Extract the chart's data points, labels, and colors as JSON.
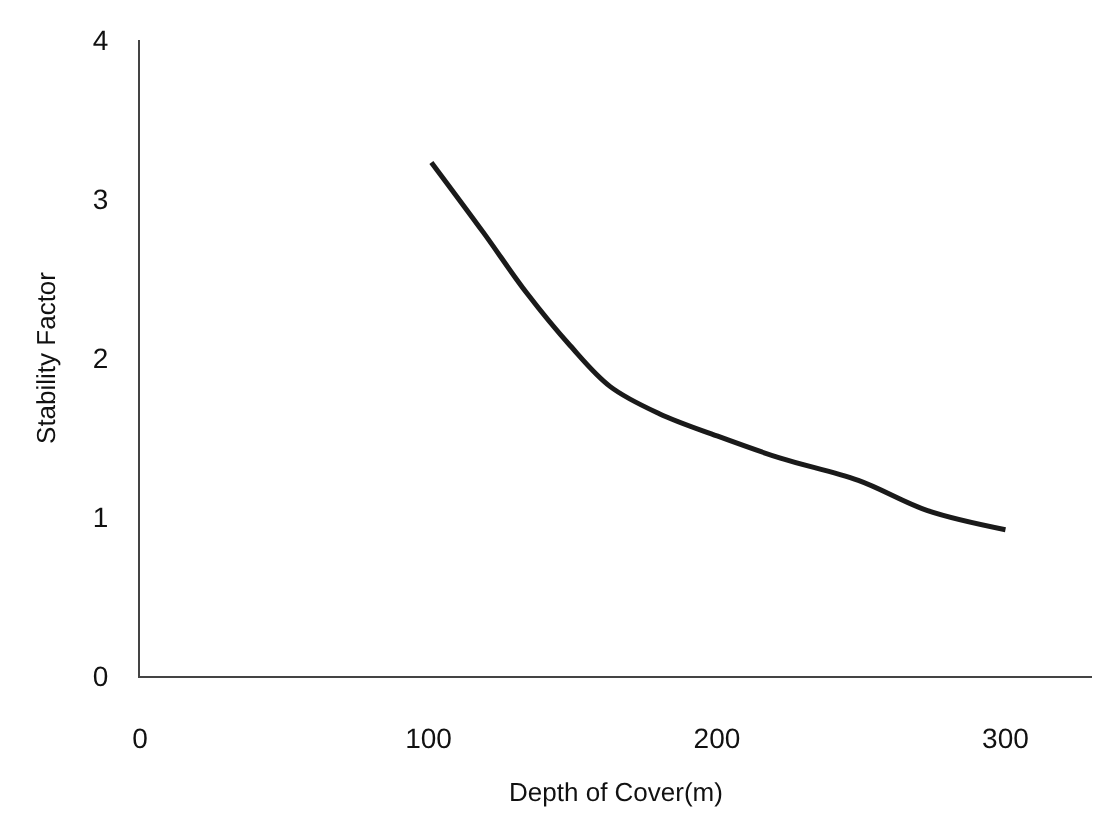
{
  "chart_data": {
    "type": "line",
    "xlabel": "Depth of Cover(m)",
    "ylabel": "Stability Factor",
    "x": [
      101,
      119,
      134,
      149,
      163,
      180,
      200,
      222,
      249,
      273,
      300
    ],
    "series": [
      {
        "color": "#1a1a1a",
        "values": [
          3.23,
          2.79,
          2.41,
          2.08,
          1.82,
          1.65,
          1.51,
          1.37,
          1.23,
          1.04,
          0.92
        ]
      }
    ],
    "xlim": [
      0,
      330
    ],
    "xticks": [
      0,
      100,
      200,
      300
    ],
    "ylim": [
      0,
      4
    ],
    "yticks": [
      0,
      1,
      2,
      3,
      4
    ],
    "marker": "none",
    "line_style": "solid"
  }
}
